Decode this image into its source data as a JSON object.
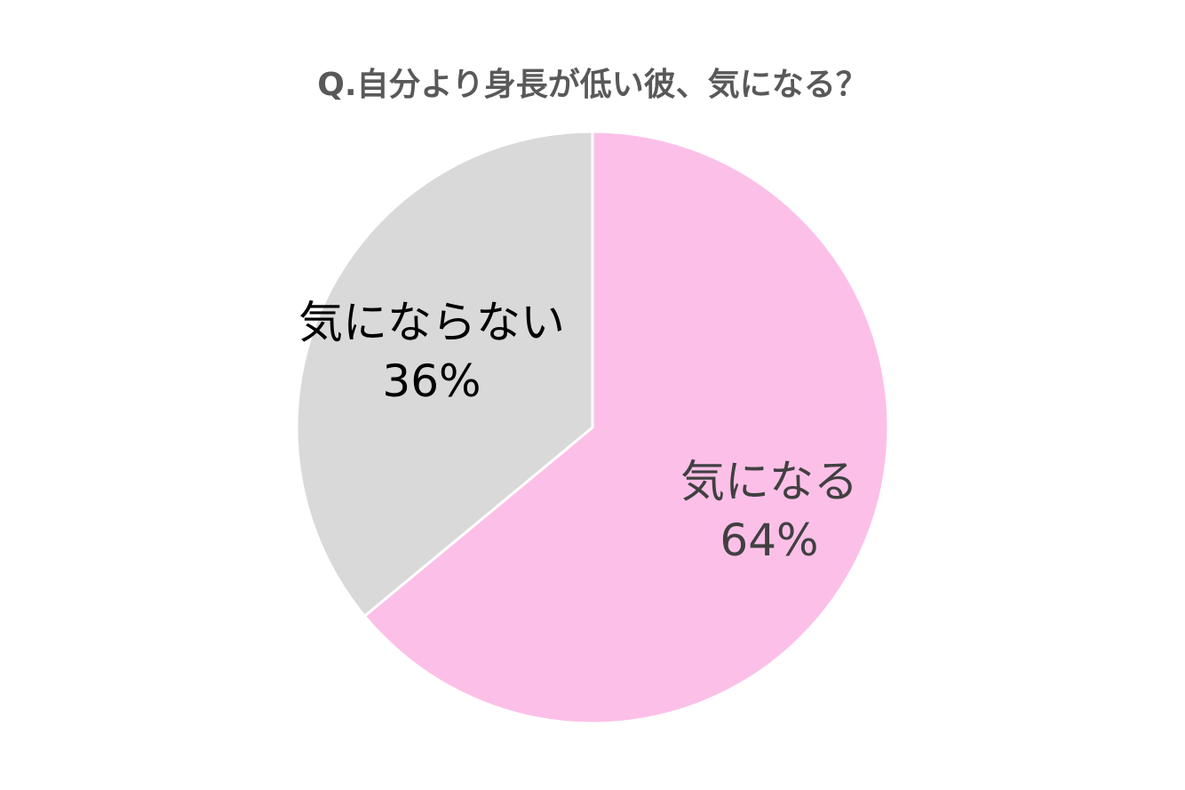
{
  "chart_data": {
    "type": "pie",
    "title": "Q.自分より身長が低い彼、気になる？",
    "slices": [
      {
        "label": "気になる",
        "value": 64,
        "value_label": "64%",
        "color": "#FCC0E8",
        "text_color": "#404040"
      },
      {
        "label": "気にならない",
        "value": 36,
        "value_label": "36%",
        "color": "#D9D9D9",
        "text_color": "#000000"
      }
    ],
    "legend": "none",
    "start": "top",
    "direction": "clockwise",
    "separator_color": "#FFFFFF"
  }
}
